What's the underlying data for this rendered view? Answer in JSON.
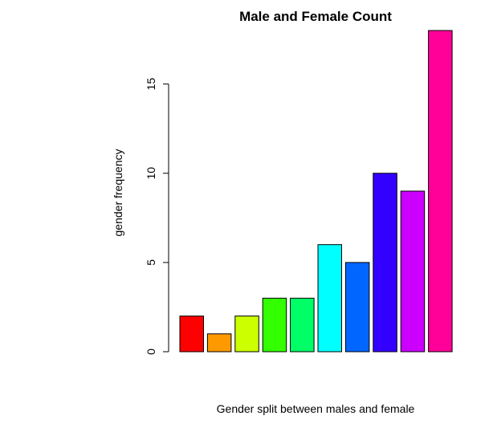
{
  "chart_data": {
    "type": "bar",
    "title": "Male and Female Count",
    "xlabel": "Gender split between males and female",
    "ylabel": "gender frequency",
    "values": [
      2,
      1,
      2,
      3,
      3,
      6,
      5,
      10,
      9,
      18
    ],
    "colors": [
      "#ff0000",
      "#ff9900",
      "#ccff00",
      "#33ff00",
      "#00ff66",
      "#00ffff",
      "#0066ff",
      "#3300ff",
      "#cc00ff",
      "#ff0099"
    ],
    "ylim": [
      0,
      18
    ],
    "yticks": [
      0,
      5,
      10,
      15
    ],
    "grid": false,
    "legend": "none"
  }
}
